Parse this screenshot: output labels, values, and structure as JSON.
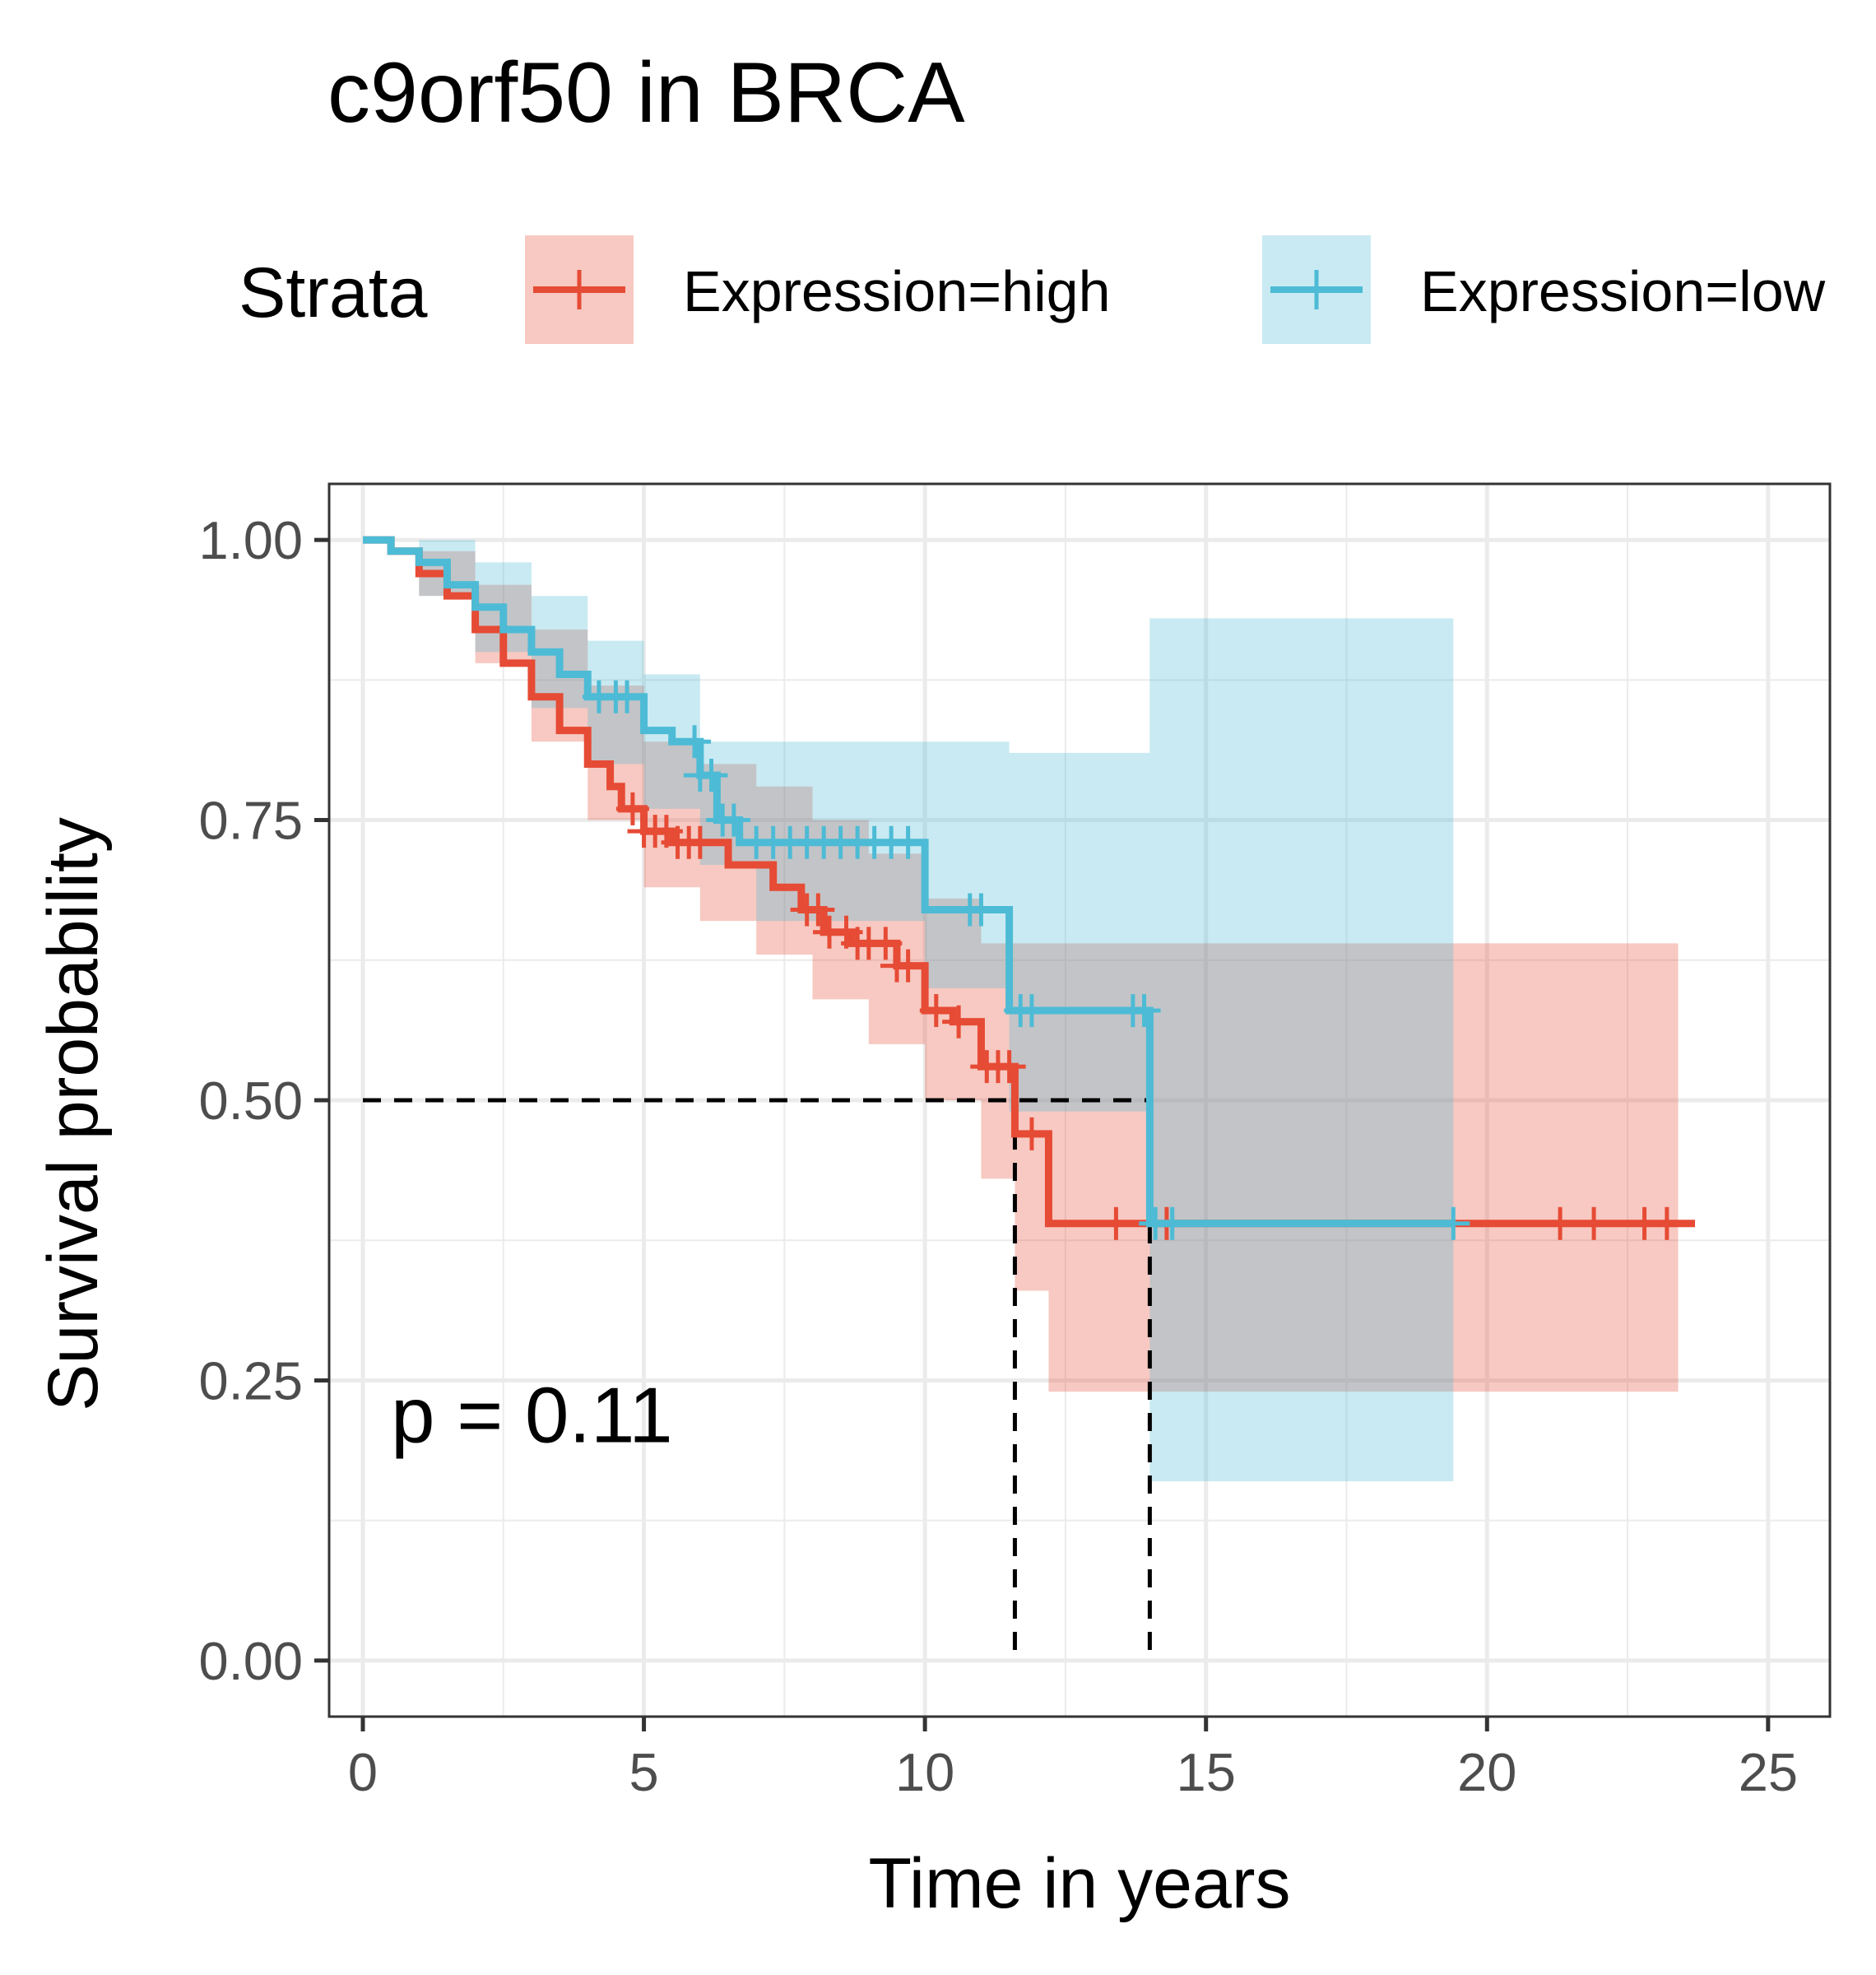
{
  "chart_data": {
    "type": "line",
    "subtype": "kaplan-meier",
    "title": "c9orf50 in BRCA",
    "xlabel": "Time in years",
    "ylabel": "Survival probability",
    "xlim": [
      -0.6,
      26.1
    ],
    "ylim": [
      -0.05,
      1.05
    ],
    "x_ticks": [
      0,
      5,
      10,
      15,
      20,
      25
    ],
    "x_tick_labels": [
      "0",
      "5",
      "10",
      "15",
      "20",
      "25"
    ],
    "y_ticks": [
      0,
      0.25,
      0.5,
      0.75,
      1.0
    ],
    "y_tick_labels": [
      "0.00",
      "0.25",
      "0.50",
      "0.75",
      "1.00"
    ],
    "grid": true,
    "legend": {
      "title": "Strata",
      "position": "top",
      "entries": [
        "Expression=high",
        "Expression=low"
      ]
    },
    "annotations": [
      {
        "text": "p = 0.11"
      }
    ],
    "median_survival": {
      "y": 0.5,
      "x": [
        11.6,
        14.0
      ]
    },
    "series": [
      {
        "name": "Expression=high",
        "color": "#E64B35",
        "steps": [
          [
            0,
            1.0
          ],
          [
            0.5,
            0.99
          ],
          [
            1.0,
            0.97
          ],
          [
            1.5,
            0.95
          ],
          [
            2.0,
            0.92
          ],
          [
            2.5,
            0.89
          ],
          [
            3.0,
            0.86
          ],
          [
            3.5,
            0.83
          ],
          [
            4.0,
            0.8
          ],
          [
            4.4,
            0.78
          ],
          [
            4.6,
            0.76
          ],
          [
            5.0,
            0.74
          ],
          [
            5.5,
            0.73
          ],
          [
            6.5,
            0.71
          ],
          [
            7.3,
            0.69
          ],
          [
            7.8,
            0.67
          ],
          [
            8.2,
            0.65
          ],
          [
            8.7,
            0.64
          ],
          [
            9.5,
            0.62
          ],
          [
            10.0,
            0.58
          ],
          [
            10.5,
            0.57
          ],
          [
            11.0,
            0.53
          ],
          [
            11.6,
            0.47
          ],
          [
            12.2,
            0.39
          ],
          [
            23.7,
            0.39
          ]
        ],
        "ci_upper": [
          [
            0,
            1.0
          ],
          [
            1.0,
            0.99
          ],
          [
            2.0,
            0.96
          ],
          [
            3.0,
            0.92
          ],
          [
            4.0,
            0.87
          ],
          [
            5.0,
            0.82
          ],
          [
            6.0,
            0.8
          ],
          [
            7.0,
            0.78
          ],
          [
            8.0,
            0.75
          ],
          [
            9.0,
            0.72
          ],
          [
            10.0,
            0.68
          ],
          [
            11.0,
            0.64
          ],
          [
            23.4,
            0.64
          ]
        ],
        "ci_lower": [
          [
            0,
            1.0
          ],
          [
            1.0,
            0.95
          ],
          [
            2.0,
            0.89
          ],
          [
            3.0,
            0.82
          ],
          [
            4.0,
            0.75
          ],
          [
            5.0,
            0.69
          ],
          [
            6.0,
            0.66
          ],
          [
            7.0,
            0.63
          ],
          [
            8.0,
            0.59
          ],
          [
            9.0,
            0.55
          ],
          [
            10.0,
            0.5
          ],
          [
            11.0,
            0.43
          ],
          [
            11.6,
            0.33
          ],
          [
            12.2,
            0.24
          ],
          [
            23.4,
            0.24
          ]
        ],
        "censor_x": [
          4.8,
          5.0,
          5.2,
          5.4,
          5.6,
          5.8,
          6.0,
          7.9,
          8.1,
          8.3,
          8.6,
          8.8,
          9.0,
          9.3,
          9.5,
          9.7,
          10.2,
          10.6,
          11.1,
          11.3,
          11.5,
          11.9,
          13.4,
          14.3,
          21.3,
          21.9,
          22.8,
          23.2
        ]
      },
      {
        "name": "Expression=low",
        "color": "#4DBBD5",
        "steps": [
          [
            0,
            1.0
          ],
          [
            0.5,
            0.99
          ],
          [
            1.0,
            0.98
          ],
          [
            1.5,
            0.96
          ],
          [
            2.0,
            0.94
          ],
          [
            2.5,
            0.92
          ],
          [
            3.0,
            0.9
          ],
          [
            3.5,
            0.88
          ],
          [
            4.0,
            0.86
          ],
          [
            5.0,
            0.83
          ],
          [
            5.5,
            0.82
          ],
          [
            6.0,
            0.79
          ],
          [
            6.3,
            0.75
          ],
          [
            6.7,
            0.73
          ],
          [
            10.0,
            0.67
          ],
          [
            11.5,
            0.58
          ],
          [
            14.0,
            0.39
          ],
          [
            19.4,
            0.39
          ]
        ],
        "ci_upper": [
          [
            0,
            1.0
          ],
          [
            1.0,
            1.0
          ],
          [
            2.0,
            0.98
          ],
          [
            3.0,
            0.95
          ],
          [
            4.0,
            0.91
          ],
          [
            5.0,
            0.88
          ],
          [
            6.0,
            0.82
          ],
          [
            7.0,
            0.82
          ],
          [
            10.0,
            0.82
          ],
          [
            11.5,
            0.81
          ],
          [
            14.0,
            0.93
          ],
          [
            19.4,
            0.93
          ]
        ],
        "ci_lower": [
          [
            0,
            1.0
          ],
          [
            1.0,
            0.95
          ],
          [
            2.0,
            0.9
          ],
          [
            3.0,
            0.85
          ],
          [
            4.0,
            0.8
          ],
          [
            5.0,
            0.76
          ],
          [
            6.0,
            0.71
          ],
          [
            7.0,
            0.66
          ],
          [
            10.0,
            0.6
          ],
          [
            11.5,
            0.49
          ],
          [
            14.0,
            0.16
          ],
          [
            19.4,
            0.16
          ]
        ],
        "censor_x": [
          4.2,
          4.5,
          4.7,
          5.9,
          6.0,
          6.2,
          6.4,
          6.6,
          7.0,
          7.3,
          7.6,
          7.9,
          8.2,
          8.5,
          8.8,
          9.1,
          9.4,
          9.7,
          10.8,
          11.0,
          11.7,
          11.9,
          13.7,
          13.9,
          14.1,
          14.4,
          19.4
        ]
      }
    ]
  }
}
